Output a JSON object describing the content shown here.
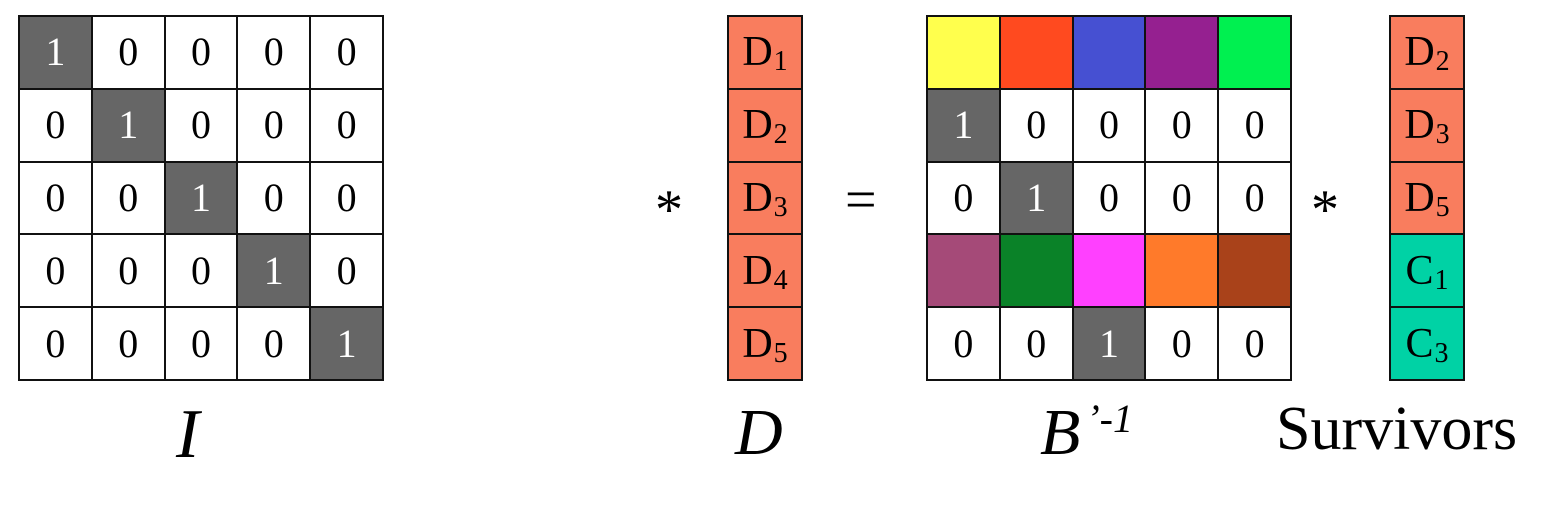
{
  "identity_matrix": {
    "label": "I",
    "rows": [
      [
        "1",
        "0",
        "0",
        "0",
        "0"
      ],
      [
        "0",
        "1",
        "0",
        "0",
        "0"
      ],
      [
        "0",
        "0",
        "1",
        "0",
        "0"
      ],
      [
        "0",
        "0",
        "0",
        "1",
        "0"
      ],
      [
        "0",
        "0",
        "0",
        "0",
        "1"
      ]
    ],
    "highlight_color": "#666666"
  },
  "operators": {
    "multiply_1": "*",
    "equals": "=",
    "multiply_2": "*"
  },
  "data_vector": {
    "label": "D",
    "color": "#f97d5e",
    "items": [
      {
        "base": "D",
        "sub": "1"
      },
      {
        "base": "D",
        "sub": "2"
      },
      {
        "base": "D",
        "sub": "3"
      },
      {
        "base": "D",
        "sub": "4"
      },
      {
        "base": "D",
        "sub": "5"
      }
    ]
  },
  "b_matrix": {
    "label": "B",
    "label_sup": "’-1",
    "rows": [
      [
        {
          "color": "#ffff4d"
        },
        {
          "color": "#ff4a1f"
        },
        {
          "color": "#4650d2"
        },
        {
          "color": "#952090"
        },
        {
          "color": "#00f050"
        }
      ],
      [
        {
          "value": "1",
          "dark": true
        },
        {
          "value": "0"
        },
        {
          "value": "0"
        },
        {
          "value": "0"
        },
        {
          "value": "0"
        }
      ],
      [
        {
          "value": "0"
        },
        {
          "value": "1",
          "dark": true
        },
        {
          "value": "0"
        },
        {
          "value": "0"
        },
        {
          "value": "0"
        }
      ],
      [
        {
          "color": "#a54a78"
        },
        {
          "color": "#0a8228"
        },
        {
          "color": "#ff40ff"
        },
        {
          "color": "#ff7a2a"
        },
        {
          "color": "#a9421a"
        }
      ],
      [
        {
          "value": "0"
        },
        {
          "value": "0"
        },
        {
          "value": "1",
          "dark": true
        },
        {
          "value": "0"
        },
        {
          "value": "0"
        }
      ]
    ]
  },
  "survivors_vector": {
    "label": "Survivors",
    "items": [
      {
        "base": "D",
        "sub": "2",
        "color": "#f97d5e"
      },
      {
        "base": "D",
        "sub": "3",
        "color": "#f97d5e"
      },
      {
        "base": "D",
        "sub": "5",
        "color": "#f97d5e"
      },
      {
        "base": "C",
        "sub": "1",
        "color": "#00d2a5"
      },
      {
        "base": "C",
        "sub": "3",
        "color": "#00d2a5"
      }
    ]
  }
}
